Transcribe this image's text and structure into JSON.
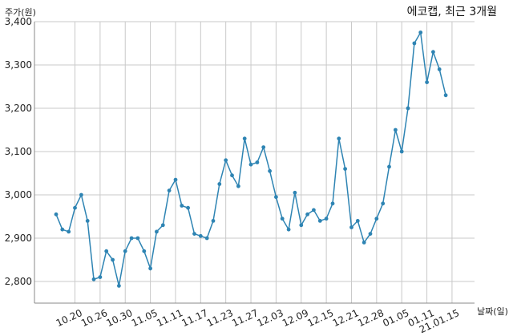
{
  "chart_data": {
    "type": "line",
    "title": "에코캡, 최근 3개월",
    "ylabel": "주가(원)",
    "xlabel": "날짜(일)",
    "ylim": [
      2750,
      3400
    ],
    "yticks": [
      2800,
      2900,
      3000,
      3100,
      3200,
      3300,
      3400
    ],
    "ytick_labels": [
      "2,800",
      "2,900",
      "3,000",
      "3,100",
      "3,200",
      "3,300",
      "3,400"
    ],
    "xtick_labels": [
      "10.20",
      "10.26",
      "10.30",
      "11.05",
      "11.11",
      "11.17",
      "11.23",
      "11.27",
      "12.03",
      "12.09",
      "12.15",
      "12.21",
      "12.28",
      "01.05",
      "01.11",
      "21.01.15"
    ],
    "xtick_index": [
      3,
      7,
      11,
      15,
      19,
      23,
      27,
      31,
      35,
      39,
      43,
      47,
      51,
      55,
      59,
      63
    ],
    "grid": true,
    "color": "#2e84b3",
    "series": [
      {
        "values": [
          2955,
          2920,
          2915,
          2970,
          3000,
          2940,
          2805,
          2810,
          2870,
          2850,
          2790,
          2870,
          2900,
          2900,
          2870,
          2830,
          2915,
          2930,
          3010,
          3035,
          2975,
          2970,
          2910,
          2905,
          2900,
          2940,
          3025,
          3080,
          3045,
          3020,
          3130,
          3070,
          3075,
          3110,
          3055,
          2995,
          2945,
          2920,
          3005,
          2930,
          2955,
          2965,
          2940,
          2945,
          2980,
          3130,
          3060,
          2925,
          2940,
          2890,
          2910,
          2945,
          2980,
          3065,
          3150,
          3100,
          3200,
          3350,
          3375,
          3260,
          3330,
          3290,
          3230
        ]
      }
    ]
  }
}
